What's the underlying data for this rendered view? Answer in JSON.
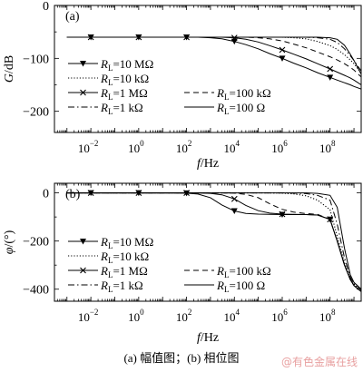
{
  "caption": "(a) 幅值图；(b) 相位图",
  "watermark": "@有色金属在线",
  "x_tick_labels": [
    {
      "base": "10",
      "exp": "−2"
    },
    {
      "base": "10",
      "exp": "0"
    },
    {
      "base": "10",
      "exp": "2"
    },
    {
      "base": "10",
      "exp": "4"
    },
    {
      "base": "10",
      "exp": "6"
    },
    {
      "base": "10",
      "exp": "8"
    }
  ],
  "x_label": {
    "italic": "f",
    "rest": "/Hz"
  },
  "legend_entries": [
    {
      "sym": "R",
      "sub": "L",
      "val": "=10 MΩ"
    },
    {
      "sym": "R",
      "sub": "L",
      "val": "=10 kΩ"
    },
    {
      "sym": "R",
      "sub": "L",
      "val": "=1 MΩ"
    },
    {
      "sym": "R",
      "sub": "L",
      "val": "=100 kΩ"
    },
    {
      "sym": "R",
      "sub": "L",
      "val": "=1 kΩ"
    },
    {
      "sym": "R",
      "sub": "L",
      "val": "=100 Ω"
    }
  ],
  "chart_data": [
    {
      "type": "line",
      "panel_label": "(a)",
      "ylabel": {
        "italic": "G",
        "rest": "/dB"
      },
      "x_scale": "log",
      "xlim": [
        0.0003,
        2000000000
      ],
      "ylim": [
        -240,
        0
      ],
      "y_ticks": [
        0,
        -100,
        -200
      ],
      "y_tick_labels": [
        "0",
        "−100",
        "−200"
      ],
      "x": [
        0.001,
        0.003,
        0.01,
        0.03,
        0.1,
        0.3,
        1,
        3,
        10,
        30,
        100,
        300,
        1000,
        3000,
        10000,
        30000,
        100000,
        300000,
        1000000,
        3000000,
        10000000,
        30000000,
        100000000,
        200000000,
        400000000,
        700000000,
        1000000000,
        2000000000
      ],
      "series": [
        {
          "name": "R_L=10 MΩ",
          "style": "solid",
          "marker": "triangle-down",
          "marker_x": [
            0.01,
            1,
            100,
            10000,
            1000000,
            100000000
          ],
          "values": [
            -60,
            -60,
            -60,
            -60,
            -60,
            -60,
            -60,
            -60,
            -60,
            -60,
            -60,
            -60,
            -61,
            -63,
            -68,
            -74,
            -82,
            -91,
            -100,
            -109,
            -118,
            -127,
            -136,
            -141,
            -146,
            -150,
            -153,
            -158
          ]
        },
        {
          "name": "R_L=10 kΩ",
          "style": "dotted",
          "marker": "none",
          "values": [
            -60,
            -60,
            -60,
            -60,
            -60,
            -60,
            -60,
            -60,
            -60,
            -60,
            -60,
            -60,
            -60,
            -60,
            -60,
            -60,
            -60,
            -60,
            -60,
            -61,
            -63,
            -68,
            -76,
            -83,
            -93,
            -103,
            -110,
            -128
          ]
        },
        {
          "name": "R_L=1 MΩ",
          "style": "solid",
          "marker": "x",
          "marker_x": [
            0.01,
            1,
            100,
            10000,
            1000000,
            100000000
          ],
          "values": [
            -60,
            -60,
            -60,
            -60,
            -60,
            -60,
            -60,
            -60,
            -60,
            -60,
            -60,
            -60,
            -60,
            -60,
            -61,
            -64,
            -69,
            -76,
            -84,
            -92,
            -101,
            -110,
            -120,
            -126,
            -132,
            -137,
            -141,
            -150
          ]
        },
        {
          "name": "R_L=100 kΩ",
          "style": "dashed",
          "marker": "none",
          "values": [
            -60,
            -60,
            -60,
            -60,
            -60,
            -60,
            -60,
            -60,
            -60,
            -60,
            -60,
            -60,
            -60,
            -60,
            -60,
            -60,
            -61,
            -63,
            -67,
            -73,
            -80,
            -88,
            -97,
            -103,
            -110,
            -117,
            -122,
            -135
          ]
        },
        {
          "name": "R_L=1 kΩ",
          "style": "dashdot",
          "marker": "none",
          "values": [
            -60,
            -60,
            -60,
            -60,
            -60,
            -60,
            -60,
            -60,
            -60,
            -60,
            -60,
            -60,
            -60,
            -60,
            -60,
            -60,
            -60,
            -60,
            -60,
            -60,
            -60,
            -61,
            -64,
            -70,
            -82,
            -95,
            -104,
            -124
          ]
        },
        {
          "name": "R_L=100 Ω",
          "style": "solid",
          "marker": "none",
          "values": [
            -60,
            -60,
            -60,
            -60,
            -60,
            -60,
            -60,
            -60,
            -60,
            -60,
            -60,
            -60,
            -60,
            -60,
            -60,
            -60,
            -60,
            -60,
            -60,
            -60,
            -60,
            -60,
            -61,
            -64,
            -75,
            -92,
            -104,
            -130
          ]
        }
      ]
    },
    {
      "type": "line",
      "panel_label": "(b)",
      "ylabel": {
        "italic": "φ",
        "rest": "/(°)"
      },
      "x_scale": "log",
      "xlim": [
        0.0003,
        2000000000
      ],
      "ylim": [
        -450,
        40
      ],
      "y_ticks": [
        0,
        -200,
        -400
      ],
      "y_tick_labels": [
        "0",
        "−200",
        "−400"
      ],
      "x": [
        0.001,
        0.003,
        0.01,
        0.03,
        0.1,
        0.3,
        1,
        3,
        10,
        30,
        100,
        300,
        1000,
        3000,
        10000,
        30000,
        100000,
        300000,
        1000000,
        3000000,
        10000000,
        30000000,
        100000000,
        200000000,
        400000000,
        700000000,
        1000000000,
        2000000000
      ],
      "series": [
        {
          "name": "R_L=10 MΩ",
          "style": "solid",
          "marker": "triangle-down",
          "marker_x": [
            0.01,
            1,
            100,
            10000,
            1000000,
            100000000
          ],
          "values": [
            0,
            0,
            0,
            0,
            0,
            0,
            0,
            0,
            0,
            0,
            -1,
            -5,
            -20,
            -50,
            -75,
            -85,
            -88,
            -89,
            -90,
            -90,
            -90,
            -92,
            -110,
            -200,
            -300,
            -360,
            -385,
            -410
          ]
        },
        {
          "name": "R_L=10 kΩ",
          "style": "dotted",
          "marker": "none",
          "values": [
            0,
            0,
            0,
            0,
            0,
            0,
            0,
            0,
            0,
            0,
            0,
            0,
            0,
            0,
            0,
            0,
            0,
            0,
            -1,
            -4,
            -12,
            -30,
            -70,
            -180,
            -290,
            -355,
            -380,
            -405
          ]
        },
        {
          "name": "R_L=1 MΩ",
          "style": "solid",
          "marker": "x",
          "marker_x": [
            0.01,
            1,
            100,
            10000,
            1000000,
            100000000
          ],
          "values": [
            0,
            0,
            0,
            0,
            0,
            0,
            0,
            0,
            0,
            0,
            0,
            0,
            -2,
            -8,
            -25,
            -52,
            -74,
            -84,
            -88,
            -89,
            -90,
            -92,
            -110,
            -200,
            -300,
            -360,
            -385,
            -410
          ]
        },
        {
          "name": "R_L=100 kΩ",
          "style": "dashed",
          "marker": "none",
          "values": [
            0,
            0,
            0,
            0,
            0,
            0,
            0,
            0,
            0,
            0,
            0,
            0,
            0,
            0,
            -1,
            -6,
            -20,
            -45,
            -68,
            -80,
            -86,
            -89,
            -110,
            -200,
            -300,
            -360,
            -385,
            -410
          ]
        },
        {
          "name": "R_L=1 kΩ",
          "style": "dashdot",
          "marker": "none",
          "values": [
            0,
            0,
            0,
            0,
            0,
            0,
            0,
            0,
            0,
            0,
            0,
            0,
            0,
            0,
            0,
            0,
            0,
            0,
            0,
            -1,
            -3,
            -10,
            -30,
            -130,
            -270,
            -350,
            -378,
            -400
          ]
        },
        {
          "name": "R_L=100 Ω",
          "style": "solid",
          "marker": "none",
          "values": [
            0,
            0,
            0,
            0,
            0,
            0,
            0,
            0,
            0,
            0,
            0,
            0,
            0,
            0,
            0,
            0,
            0,
            0,
            0,
            0,
            0,
            -2,
            -10,
            -60,
            -230,
            -340,
            -372,
            -400
          ]
        }
      ]
    }
  ]
}
